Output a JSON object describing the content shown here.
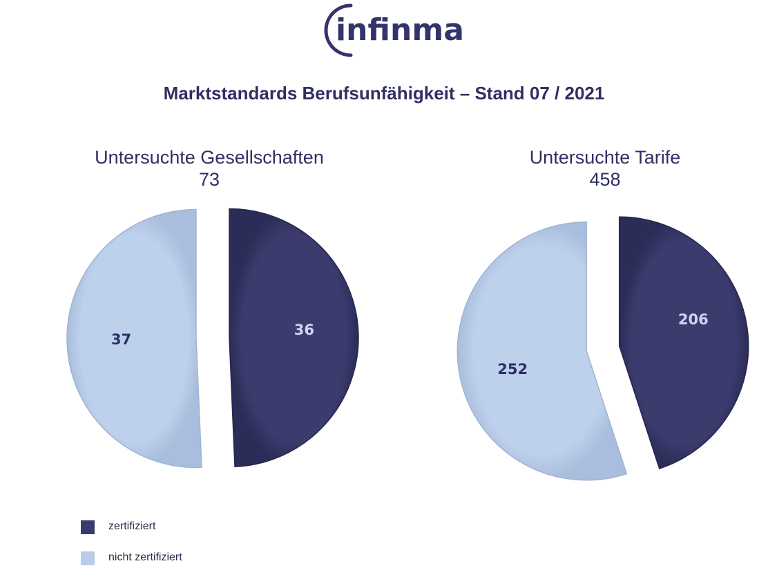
{
  "logo": {
    "text": "infinma"
  },
  "title": "Marktstandards Berufsunfähigkeit – Stand 07 / 2021",
  "colors": {
    "zertifiziert": "#3a3a6c",
    "nicht_zertifiziert": "#b9cde9"
  },
  "chart_data": [
    {
      "type": "pie",
      "title": "Untersuchte Gesellschaften",
      "total": "73",
      "slices": [
        {
          "category": "zertifiziert",
          "value": 36
        },
        {
          "category": "nicht zertifiziert",
          "value": 37
        }
      ]
    },
    {
      "type": "pie",
      "title": "Untersuchte Tarife",
      "total": "458",
      "slices": [
        {
          "category": "zertifiziert",
          "value": 206
        },
        {
          "category": "nicht zertifiziert",
          "value": 252
        }
      ]
    }
  ],
  "legend": [
    {
      "label": "zertifiziert",
      "color": "#3a3a6c"
    },
    {
      "label": "nicht zertifiziert",
      "color": "#b9cde9"
    }
  ]
}
